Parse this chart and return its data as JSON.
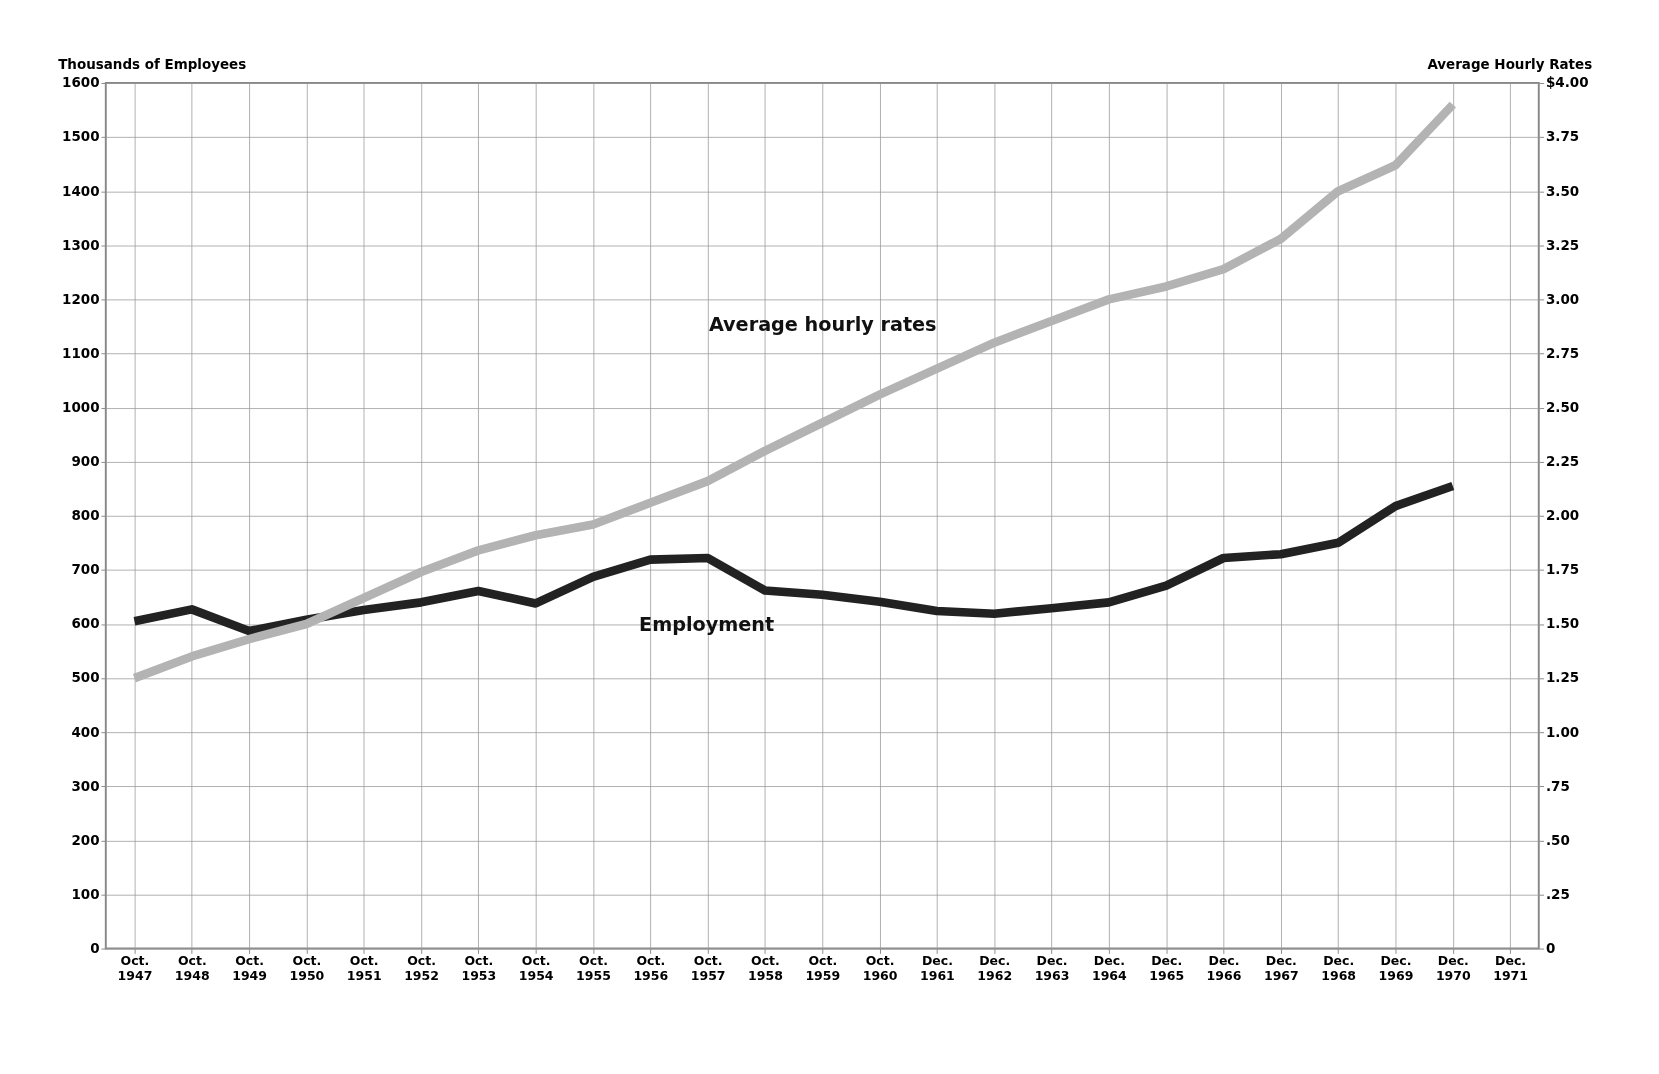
{
  "chart_data": {
    "type": "line",
    "categories": [
      "Oct. 1947",
      "Oct. 1948",
      "Oct. 1949",
      "Oct. 1950",
      "Oct. 1951",
      "Oct. 1952",
      "Oct. 1953",
      "Oct. 1954",
      "Oct. 1955",
      "Oct. 1956",
      "Oct. 1957",
      "Oct. 1958",
      "Oct. 1959",
      "Oct. 1960",
      "Dec. 1961",
      "Dec. 1962",
      "Dec. 1963",
      "Dec. 1964",
      "Dec. 1965",
      "Dec. 1966",
      "Dec. 1967",
      "Dec. 1968",
      "Dec. 1969",
      "Dec. 1970",
      "Dec. 1971"
    ],
    "ylabel": "Thousands of Employees",
    "y2label": "Average Hourly Rates",
    "ylim": [
      0,
      1600
    ],
    "yticks": [
      0,
      100,
      200,
      300,
      400,
      500,
      600,
      700,
      800,
      900,
      1000,
      1100,
      1200,
      1300,
      1400,
      1500,
      1600
    ],
    "y2lim": [
      0,
      4
    ],
    "y2ticks": [
      {
        "value": 0,
        "label": "0"
      },
      {
        "value": 0.25,
        "label": ".25"
      },
      {
        "value": 0.5,
        "label": ".50"
      },
      {
        "value": 0.75,
        "label": ".75"
      },
      {
        "value": 1,
        "label": "1.00"
      },
      {
        "value": 1.25,
        "label": "1.25"
      },
      {
        "value": 1.5,
        "label": "1.50"
      },
      {
        "value": 1.75,
        "label": "1.75"
      },
      {
        "value": 2,
        "label": "2.00"
      },
      {
        "value": 2.25,
        "label": "2.25"
      },
      {
        "value": 2.5,
        "label": "2.50"
      },
      {
        "value": 2.75,
        "label": "2.75"
      },
      {
        "value": 3,
        "label": "3.00"
      },
      {
        "value": 3.25,
        "label": "3.25"
      },
      {
        "value": 3.5,
        "label": "3.50"
      },
      {
        "value": 3.75,
        "label": "3.75"
      },
      {
        "value": 4,
        "label": "$4.00"
      }
    ],
    "series": [
      {
        "name": "Employment",
        "color": "#222222",
        "values": [
          605,
          627,
          587,
          608,
          626,
          640,
          661,
          638,
          687,
          719,
          722,
          662,
          654,
          641,
          624,
          619,
          629,
          640,
          671,
          722,
          729,
          750,
          818,
          855,
          null
        ]
      },
      {
        "name": "Average hourly rates",
        "color": "#b3b3b3",
        "axis": "y2",
        "values": [
          1.25,
          1.35,
          1.43,
          1.5,
          1.62,
          1.74,
          1.84,
          1.91,
          1.96,
          2.06,
          2.16,
          2.3,
          2.43,
          2.56,
          2.68,
          2.8,
          2.9,
          3.0,
          3.06,
          3.14,
          3.28,
          3.5,
          3.62,
          3.9,
          null
        ]
      }
    ],
    "grid": true,
    "line_style": "solid"
  }
}
